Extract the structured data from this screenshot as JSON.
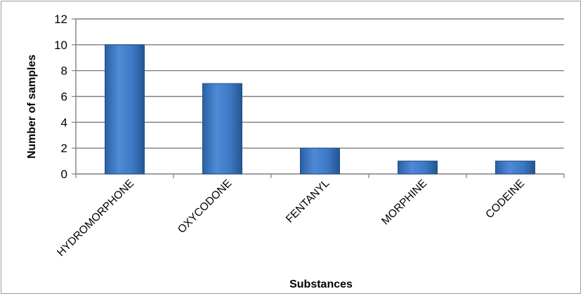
{
  "chart_data": {
    "type": "bar",
    "categories": [
      "HYDROMORPHONE",
      "OXYCODONE",
      "FENTANYL",
      "MORPHINE",
      "CODEINE"
    ],
    "values": [
      10,
      7,
      2,
      1,
      1
    ],
    "title": "",
    "xlabel": "Substances",
    "ylabel": "Number of samples",
    "ylim": [
      0,
      12
    ],
    "yticks": [
      0,
      2,
      4,
      6,
      8,
      10,
      12
    ],
    "grid": true,
    "legend": "none",
    "bar_color": "#3f7ac6",
    "bar_edge_color": "#1f4f8c"
  }
}
